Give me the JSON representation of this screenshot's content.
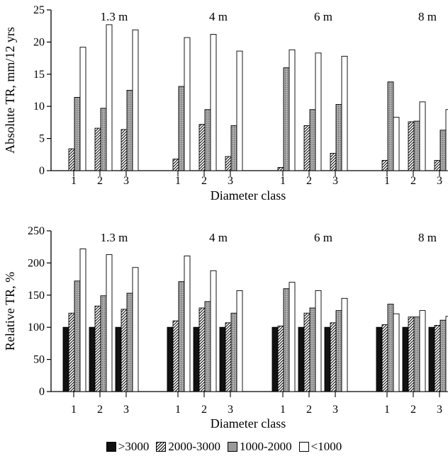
{
  "legend": {
    "items": [
      {
        "label": ">3000",
        "pattern": "solid",
        "color": "#111111"
      },
      {
        "label": "2000-3000",
        "pattern": "hatch",
        "color": "#ffffff"
      },
      {
        "label": "1000-2000",
        "pattern": "stipple",
        "color": "#9a9a9a"
      },
      {
        "label": "<1000",
        "pattern": "open",
        "color": "#ffffff"
      }
    ]
  },
  "chart_data": [
    {
      "type": "bar",
      "ylabel": "Absolute TR, mm/12 yrs",
      "xlabel": "Diameter class",
      "ylim": [
        0,
        25
      ],
      "yticks": [
        "0",
        "5",
        "10",
        "15",
        "20",
        "25"
      ],
      "grid": false,
      "groups": [
        {
          "label": "1.3 m",
          "categories": [
            "1",
            "2",
            "3"
          ]
        },
        {
          "label": "4 m",
          "categories": [
            "1",
            "2",
            "3"
          ]
        },
        {
          "label": "6 m",
          "categories": [
            "1",
            "2",
            "3"
          ]
        },
        {
          "label": "8 m",
          "categories": [
            "1",
            "2",
            "3"
          ]
        }
      ],
      "series": [
        {
          "name": ">3000",
          "values": [
            [
              null,
              null,
              null
            ],
            [
              null,
              null,
              null
            ],
            [
              null,
              null,
              null
            ],
            [
              null,
              null,
              null
            ]
          ]
        },
        {
          "name": "2000-3000",
          "values": [
            [
              3.4,
              6.6,
              6.4
            ],
            [
              1.8,
              7.2,
              2.2
            ],
            [
              0.5,
              7.0,
              2.7
            ],
            [
              1.6,
              7.6,
              1.6
            ]
          ]
        },
        {
          "name": "1000-2000",
          "values": [
            [
              11.4,
              9.7,
              12.5
            ],
            [
              13.1,
              9.5,
              7.0
            ],
            [
              16.0,
              9.5,
              10.3
            ],
            [
              13.8,
              7.7,
              6.3
            ]
          ]
        },
        {
          "name": "<1000",
          "values": [
            [
              19.2,
              22.7,
              21.9
            ],
            [
              20.7,
              21.2,
              18.6
            ],
            [
              18.8,
              18.3,
              17.8
            ],
            [
              8.3,
              10.7,
              9.5
            ]
          ]
        }
      ]
    },
    {
      "type": "bar",
      "ylabel": "Relative TR, %",
      "xlabel": "Diameter class",
      "ylim": [
        0,
        250
      ],
      "yticks": [
        "0",
        "50",
        "100",
        "150",
        "200",
        "250"
      ],
      "grid": false,
      "groups": [
        {
          "label": "1.3 m",
          "categories": [
            "1",
            "2",
            "3"
          ]
        },
        {
          "label": "4 m",
          "categories": [
            "1",
            "2",
            "3"
          ]
        },
        {
          "label": "6 m",
          "categories": [
            "1",
            "2",
            "3"
          ]
        },
        {
          "label": "8 m",
          "categories": [
            "1",
            "2",
            "3"
          ]
        }
      ],
      "series": [
        {
          "name": ">3000",
          "values": [
            [
              100,
              100,
              100
            ],
            [
              100,
              100,
              100
            ],
            [
              100,
              100,
              100
            ],
            [
              100,
              100,
              100
            ]
          ]
        },
        {
          "name": "2000-3000",
          "values": [
            [
              122,
              133,
              128
            ],
            [
              110,
              130,
              107
            ],
            [
              102,
              122,
              107
            ],
            [
              104,
              116,
              103
            ]
          ]
        },
        {
          "name": "1000-2000",
          "values": [
            [
              172,
              149,
              153
            ],
            [
              171,
              140,
              122
            ],
            [
              160,
              130,
              126
            ],
            [
              136,
              116,
              111
            ]
          ]
        },
        {
          "name": "<1000",
          "values": [
            [
              222,
              213,
              193
            ],
            [
              211,
              188,
              157
            ],
            [
              170,
              157,
              145
            ],
            [
              121,
              126,
              117
            ]
          ]
        }
      ]
    }
  ]
}
